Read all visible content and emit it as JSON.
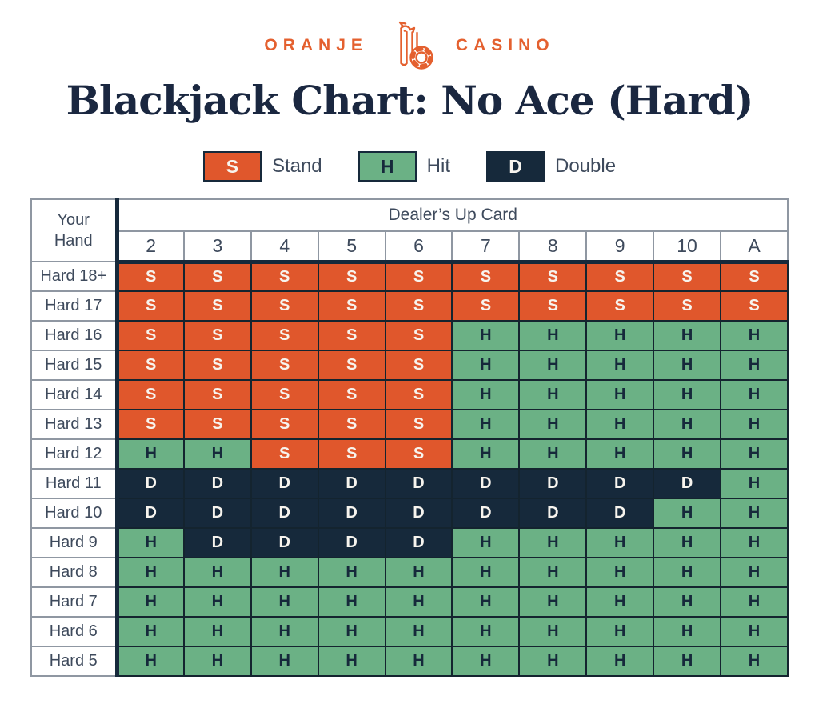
{
  "logo": {
    "left_text": "ORANJE",
    "right_text": "CASINO",
    "icon": "lion-with-casino-chip-icon",
    "color": "#e4602f"
  },
  "title": "Blackjack Chart: No Ace (Hard)",
  "colors": {
    "stand_orange": "#e0572c",
    "hit_green": "#6bb185",
    "double_navy": "#16293b",
    "title_text": "#1a2740",
    "header_text": "#3e4a5c",
    "light_letter": "#f7f4ee"
  },
  "chart_data": {
    "type": "table",
    "title": "Blackjack Chart: No Ace (Hard)",
    "corner_header": "Your\nHand",
    "column_group_header": "Dealer’s Up Card",
    "columns": [
      "2",
      "3",
      "4",
      "5",
      "6",
      "7",
      "8",
      "9",
      "10",
      "A"
    ],
    "rows": [
      {
        "label": "Hard 18+",
        "values": [
          "S",
          "S",
          "S",
          "S",
          "S",
          "S",
          "S",
          "S",
          "S",
          "S"
        ]
      },
      {
        "label": "Hard 17",
        "values": [
          "S",
          "S",
          "S",
          "S",
          "S",
          "S",
          "S",
          "S",
          "S",
          "S"
        ]
      },
      {
        "label": "Hard 16",
        "values": [
          "S",
          "S",
          "S",
          "S",
          "S",
          "H",
          "H",
          "H",
          "H",
          "H"
        ]
      },
      {
        "label": "Hard 15",
        "values": [
          "S",
          "S",
          "S",
          "S",
          "S",
          "H",
          "H",
          "H",
          "H",
          "H"
        ]
      },
      {
        "label": "Hard 14",
        "values": [
          "S",
          "S",
          "S",
          "S",
          "S",
          "H",
          "H",
          "H",
          "H",
          "H"
        ]
      },
      {
        "label": "Hard 13",
        "values": [
          "S",
          "S",
          "S",
          "S",
          "S",
          "H",
          "H",
          "H",
          "H",
          "H"
        ]
      },
      {
        "label": "Hard 12",
        "values": [
          "H",
          "H",
          "S",
          "S",
          "S",
          "H",
          "H",
          "H",
          "H",
          "H"
        ]
      },
      {
        "label": "Hard 11",
        "values": [
          "D",
          "D",
          "D",
          "D",
          "D",
          "D",
          "D",
          "D",
          "D",
          "H"
        ]
      },
      {
        "label": "Hard 10",
        "values": [
          "D",
          "D",
          "D",
          "D",
          "D",
          "D",
          "D",
          "D",
          "H",
          "H"
        ]
      },
      {
        "label": "Hard 9",
        "values": [
          "H",
          "D",
          "D",
          "D",
          "D",
          "H",
          "H",
          "H",
          "H",
          "H"
        ]
      },
      {
        "label": "Hard 8",
        "values": [
          "H",
          "H",
          "H",
          "H",
          "H",
          "H",
          "H",
          "H",
          "H",
          "H"
        ]
      },
      {
        "label": "Hard 7",
        "values": [
          "H",
          "H",
          "H",
          "H",
          "H",
          "H",
          "H",
          "H",
          "H",
          "H"
        ]
      },
      {
        "label": "Hard 6",
        "values": [
          "H",
          "H",
          "H",
          "H",
          "H",
          "H",
          "H",
          "H",
          "H",
          "H"
        ]
      },
      {
        "label": "Hard 5",
        "values": [
          "H",
          "H",
          "H",
          "H",
          "H",
          "H",
          "H",
          "H",
          "H",
          "H"
        ]
      }
    ],
    "legend": [
      {
        "code": "S",
        "label": "Stand"
      },
      {
        "code": "H",
        "label": "Hit"
      },
      {
        "code": "D",
        "label": "Double"
      }
    ]
  }
}
